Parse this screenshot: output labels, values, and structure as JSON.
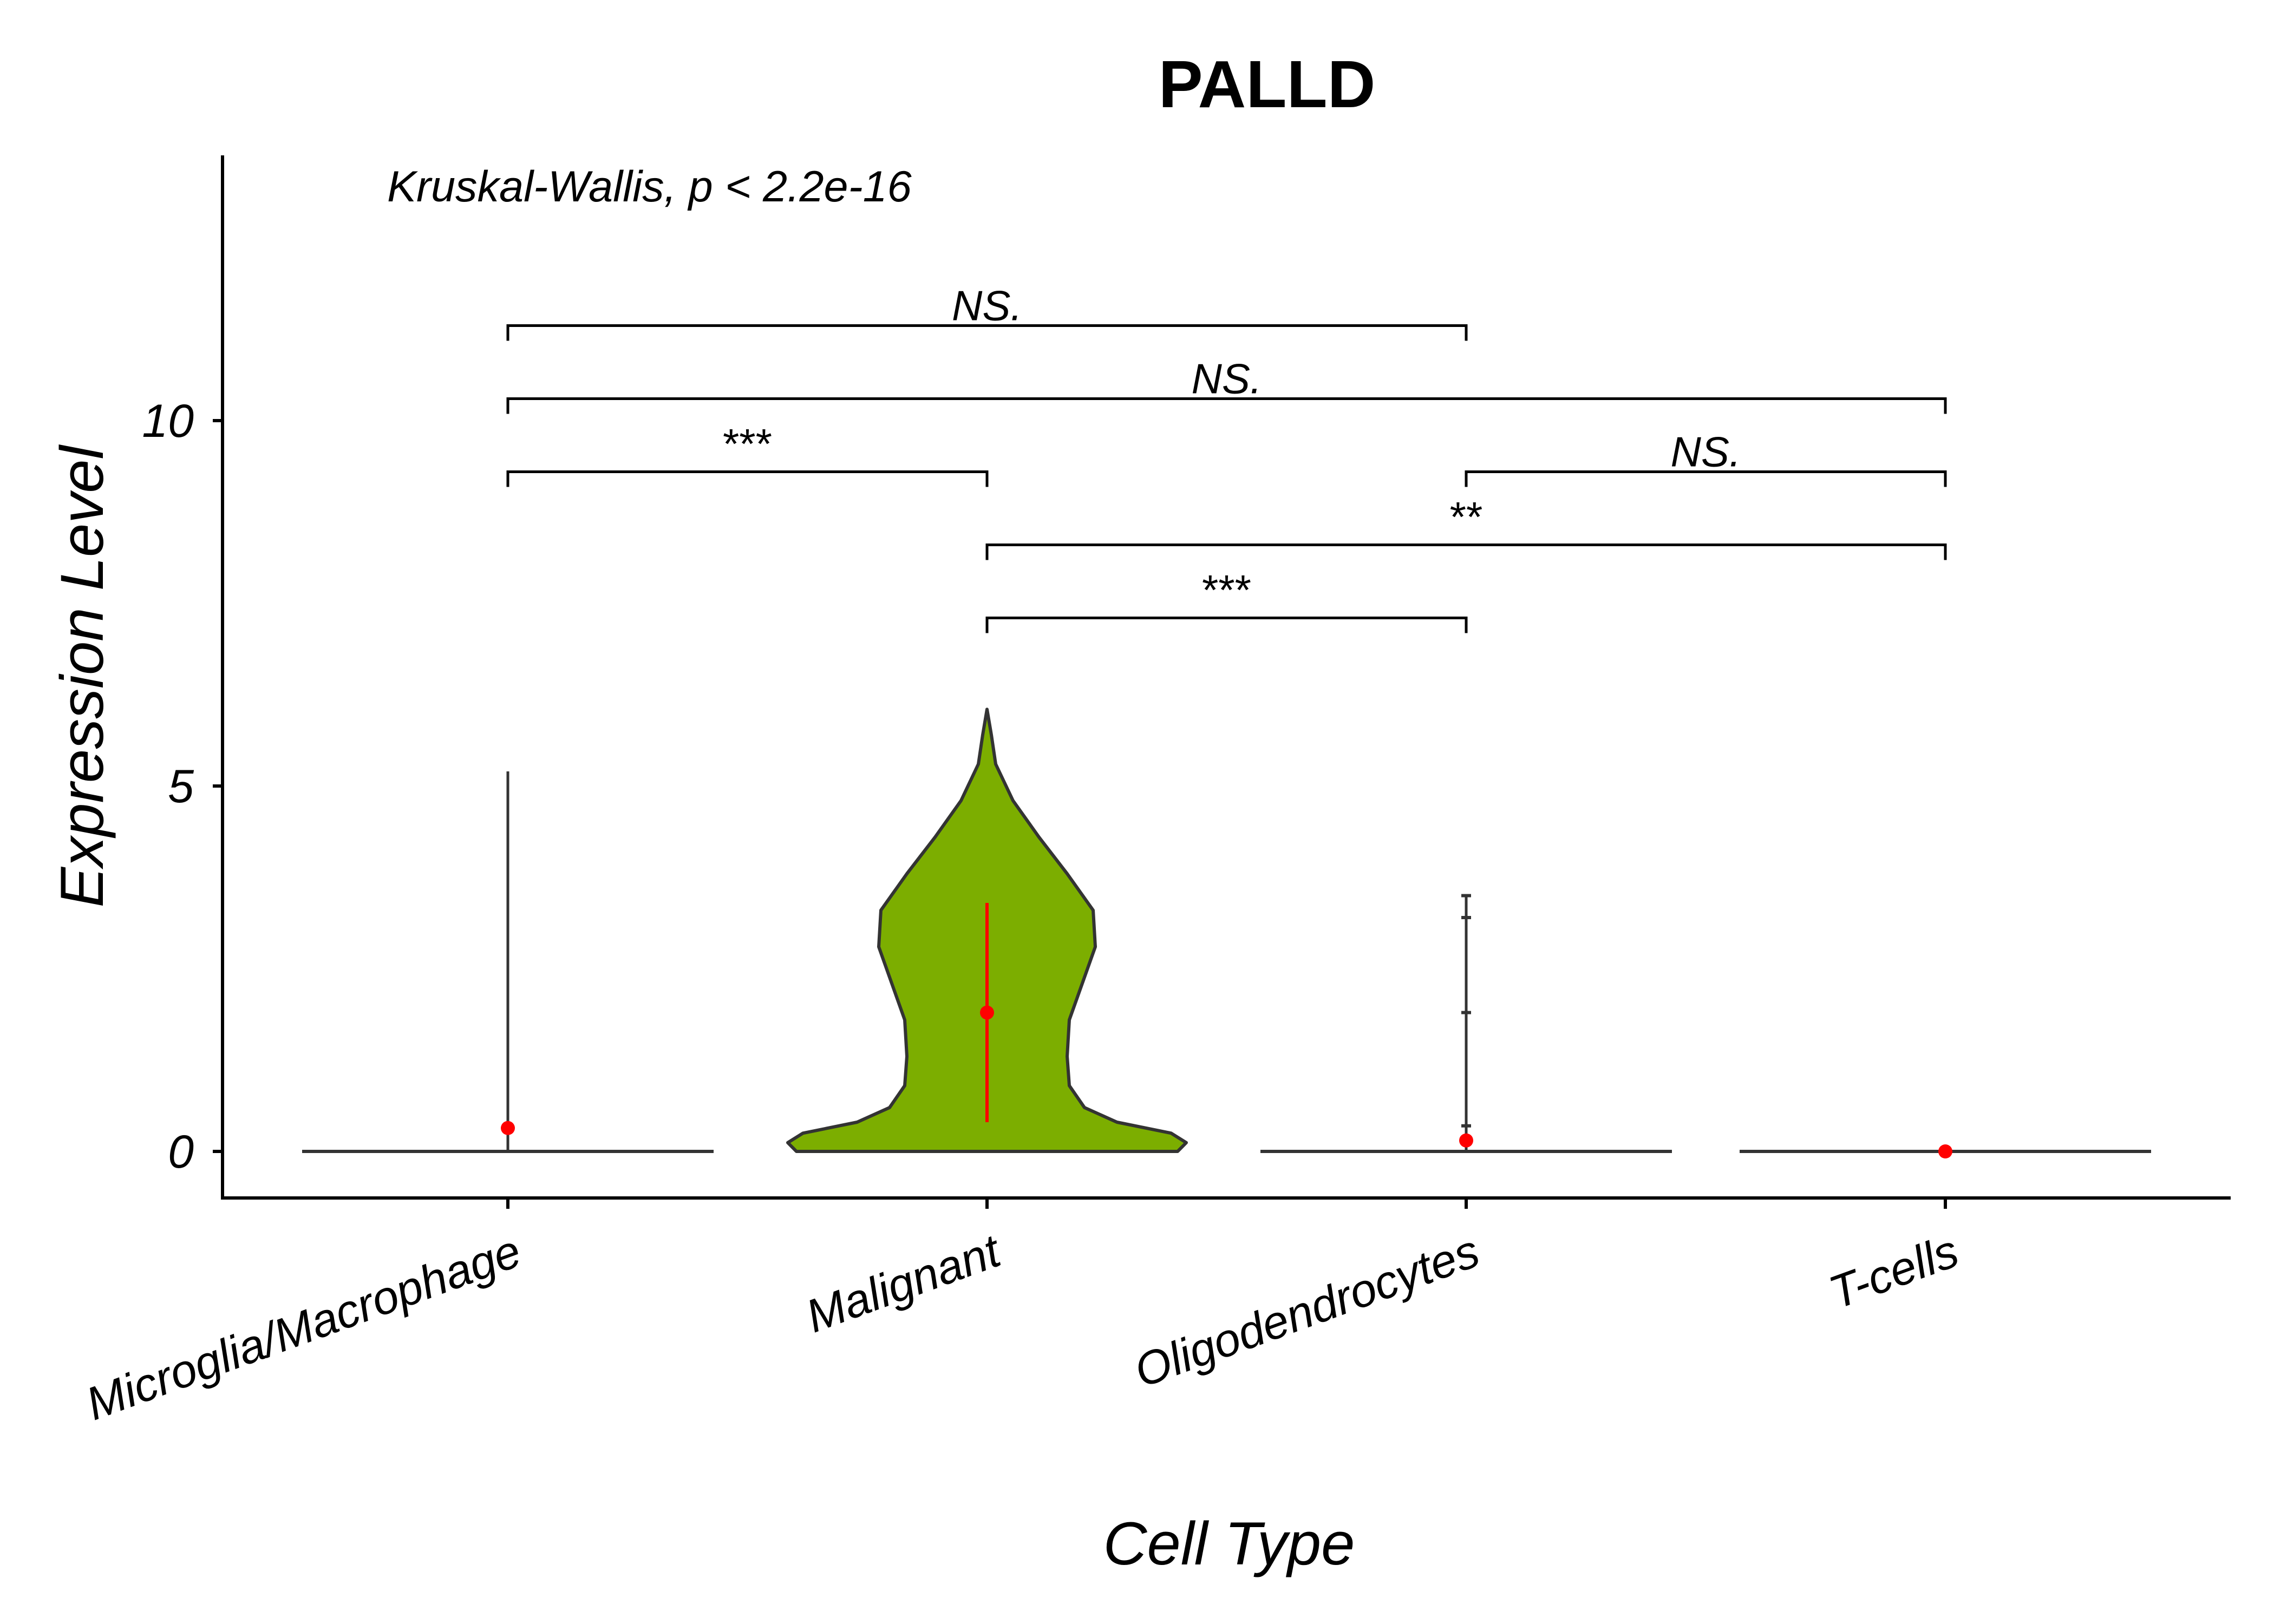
{
  "chart_data": {
    "type": "violin",
    "title": "PALLD",
    "xlabel": "Cell Type",
    "ylabel": "Expression Level",
    "annotation": "Kruskal-Wallis, p < 2.2e-16",
    "ylim": [
      -0.65,
      13.7
    ],
    "yticks": [
      0,
      5,
      10
    ],
    "categories": [
      "Microglia/Macrophage",
      "Malignant",
      "Oligodendrocytes",
      "T-cells"
    ],
    "violins": [
      {
        "category": "Microglia/Macrophage",
        "max": 5.2,
        "mean": 0.32,
        "profile": [
          [
            0,
            0.95
          ],
          [
            0.03,
            0.0
          ],
          [
            5.2,
            0.0
          ]
        ]
      },
      {
        "category": "Malignant",
        "fill_color": "#7CAE00",
        "mean": 1.9,
        "error_bar": [
          0.4,
          3.4
        ],
        "profile": [
          [
            0,
            0.88
          ],
          [
            0.12,
            0.92
          ],
          [
            0.25,
            0.85
          ],
          [
            0.4,
            0.6
          ],
          [
            0.6,
            0.45
          ],
          [
            0.9,
            0.38
          ],
          [
            1.3,
            0.37
          ],
          [
            1.8,
            0.38
          ],
          [
            2.3,
            0.44
          ],
          [
            2.8,
            0.5
          ],
          [
            3.3,
            0.49
          ],
          [
            3.8,
            0.37
          ],
          [
            4.3,
            0.24
          ],
          [
            4.8,
            0.12
          ],
          [
            5.3,
            0.04
          ],
          [
            5.7,
            0.02
          ],
          [
            6.05,
            0.0
          ]
        ]
      },
      {
        "category": "Oligodendrocytes",
        "max": 3.5,
        "mean": 0.15,
        "outliers": [
          3.5,
          3.2,
          1.9,
          0.35
        ],
        "profile": [
          [
            0,
            0.95
          ],
          [
            0.03,
            0.0
          ],
          [
            3.5,
            0.0
          ]
        ]
      },
      {
        "category": "T-cells",
        "mean": 0.0,
        "profile": [
          [
            0,
            0.95
          ],
          [
            0.03,
            0.0
          ]
        ]
      }
    ],
    "comparisons": [
      {
        "groups": [
          "Microglia/Macrophage",
          "Oligodendrocytes"
        ],
        "y": 11.3,
        "label": "NS.",
        "italic": true
      },
      {
        "groups": [
          "Microglia/Macrophage",
          "T-cells"
        ],
        "y": 10.3,
        "label": "NS.",
        "italic": true
      },
      {
        "groups": [
          "Microglia/Macrophage",
          "Malignant"
        ],
        "y": 9.3,
        "label": "***",
        "italic": false
      },
      {
        "groups": [
          "Oligodendrocytes",
          "T-cells"
        ],
        "y": 9.3,
        "label": "NS.",
        "italic": true
      },
      {
        "groups": [
          "Malignant",
          "T-cells"
        ],
        "y": 8.3,
        "label": "**",
        "italic": false
      },
      {
        "groups": [
          "Malignant",
          "Oligodendrocytes"
        ],
        "y": 7.3,
        "label": "***",
        "italic": false
      }
    ],
    "mean_point_color": "#FF0000",
    "outline_color": "#333333"
  }
}
